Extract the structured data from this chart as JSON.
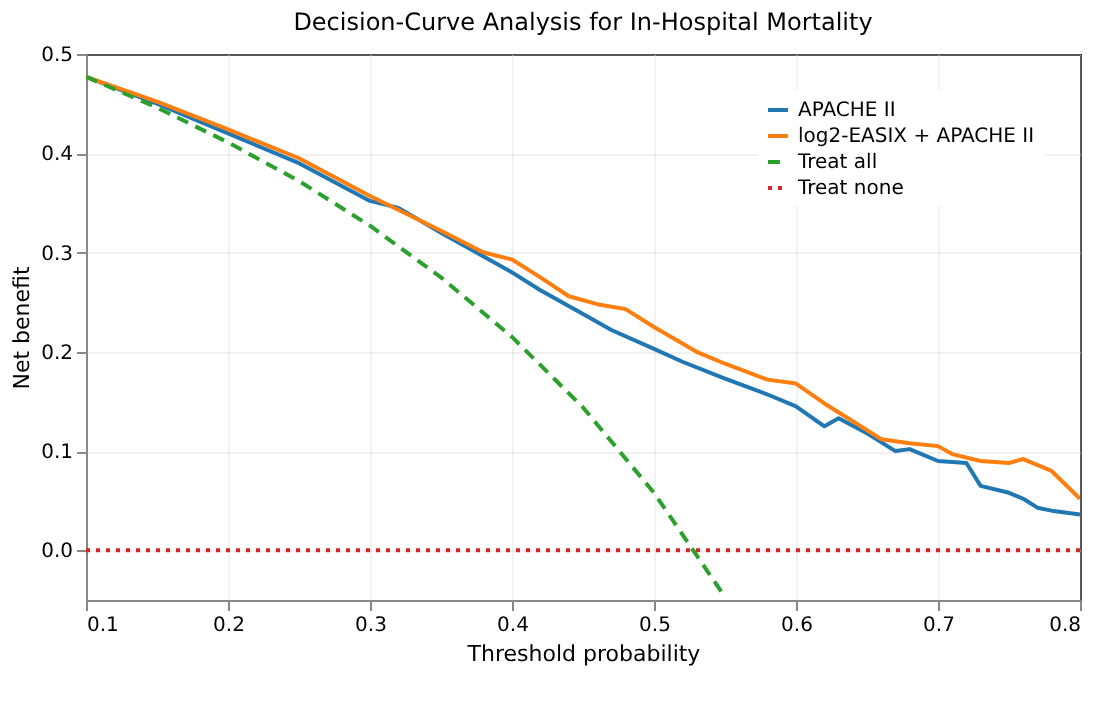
{
  "chart_data": {
    "type": "line",
    "title": "Decision-Curve Analysis for In-Hospital Mortality",
    "xlabel": "Threshold probability",
    "ylabel": "Net benefit",
    "xlim": [
      0.1,
      0.8
    ],
    "xticks": [
      0.1,
      0.2,
      0.3,
      0.4,
      0.5,
      0.6,
      0.7,
      0.8
    ],
    "ylim": [
      -0.05,
      0.5
    ],
    "yticks": [
      {
        "value": 0,
        "label": "0.0"
      },
      0.1,
      0.2,
      0.3,
      0.4,
      0.5
    ],
    "grid": true,
    "legend": "top right",
    "marker": "none",
    "series": [
      {
        "name": "APACHE II",
        "color": "#1f77b4",
        "line_style": "solid",
        "x": [
          0.1,
          0.15,
          0.2,
          0.25,
          0.3,
          0.32,
          0.35,
          0.4,
          0.42,
          0.45,
          0.47,
          0.5,
          0.52,
          0.55,
          0.58,
          0.6,
          0.62,
          0.63,
          0.65,
          0.67,
          0.68,
          0.7,
          0.72,
          0.73,
          0.75,
          0.76,
          0.77,
          0.78,
          0.8
        ],
        "values": [
          0.477,
          0.45,
          0.42,
          0.39,
          0.352,
          0.345,
          0.32,
          0.28,
          0.262,
          0.238,
          0.222,
          0.203,
          0.19,
          0.173,
          0.157,
          0.145,
          0.125,
          0.133,
          0.118,
          0.1,
          0.102,
          0.09,
          0.088,
          0.065,
          0.058,
          0.052,
          0.043,
          0.04,
          0.036
        ]
      },
      {
        "name": "log2-EASIX + APACHE II",
        "color": "#ff7f0e",
        "line_style": "solid",
        "x": [
          0.1,
          0.15,
          0.2,
          0.25,
          0.3,
          0.35,
          0.38,
          0.4,
          0.42,
          0.44,
          0.46,
          0.48,
          0.5,
          0.53,
          0.55,
          0.58,
          0.6,
          0.62,
          0.64,
          0.66,
          0.68,
          0.7,
          0.71,
          0.73,
          0.75,
          0.76,
          0.78,
          0.8
        ],
        "values": [
          0.477,
          0.452,
          0.424,
          0.395,
          0.357,
          0.322,
          0.3,
          0.293,
          0.275,
          0.256,
          0.248,
          0.243,
          0.225,
          0.2,
          0.188,
          0.172,
          0.168,
          0.148,
          0.13,
          0.112,
          0.108,
          0.105,
          0.097,
          0.09,
          0.088,
          0.092,
          0.08,
          0.052
        ]
      },
      {
        "name": "Treat all",
        "color": "#2ca02c",
        "line_style": "dashed",
        "x": [
          0.1,
          0.15,
          0.2,
          0.25,
          0.3,
          0.35,
          0.4,
          0.45,
          0.5,
          0.55
        ],
        "values": [
          0.477,
          0.446,
          0.411,
          0.372,
          0.327,
          0.275,
          0.215,
          0.144,
          0.058,
          -0.047
        ]
      },
      {
        "name": "Treat none",
        "color": "#d62728",
        "line_style": "dotted",
        "x": [
          0.1,
          0.8
        ],
        "values": [
          0.0,
          0.0
        ]
      }
    ]
  }
}
